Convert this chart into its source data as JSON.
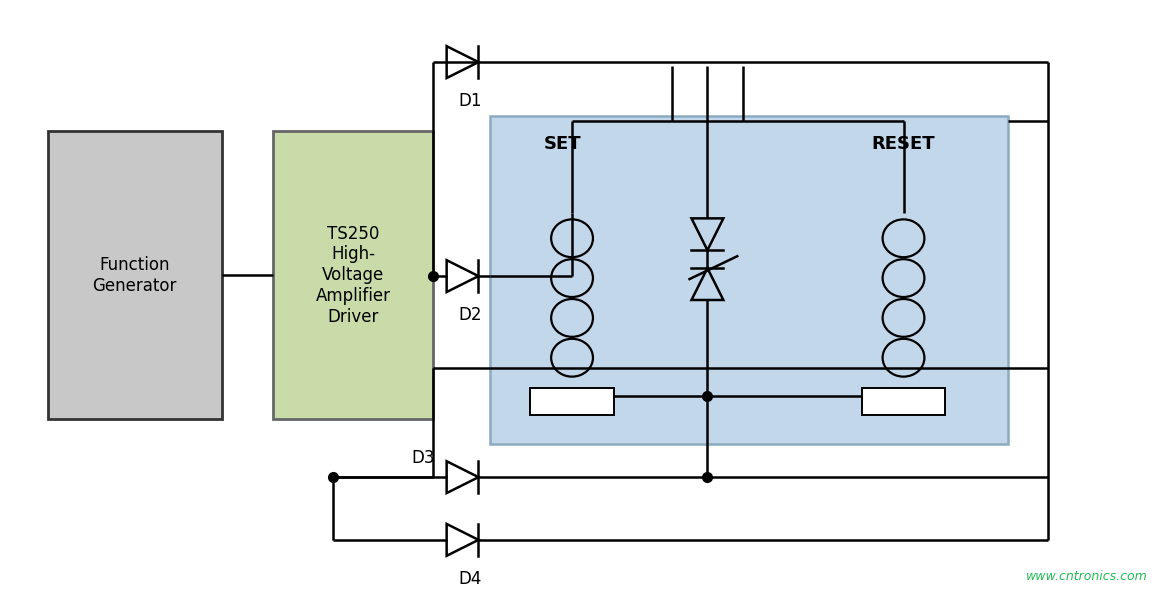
{
  "bg_color": "#ffffff",
  "line_color": "#000000",
  "relay_bg_color": "#c2d8ea",
  "relay_border_color": "#8aabbf",
  "ts_box_color": "#c8dba8",
  "ts_box_border": "#666666",
  "gray_box_color": "#c8c8c8",
  "gray_box_border": "#333333",
  "dot_color": "#000000",
  "text_color": "#000000",
  "watermark_color": "#22bb55",
  "gen_label": "Function\nGenerator",
  "ts_label": "TS250\nHigh-\nVoltage\nAmplifier\nDriver",
  "set_label": "SET",
  "reset_label": "RESET",
  "d1_label": "D1",
  "d2_label": "D2",
  "d3_label": "D3",
  "d4_label": "D4",
  "watermark": "www.cntronics.com",
  "figsize": [
    11.69,
    5.96
  ],
  "dpi": 100
}
